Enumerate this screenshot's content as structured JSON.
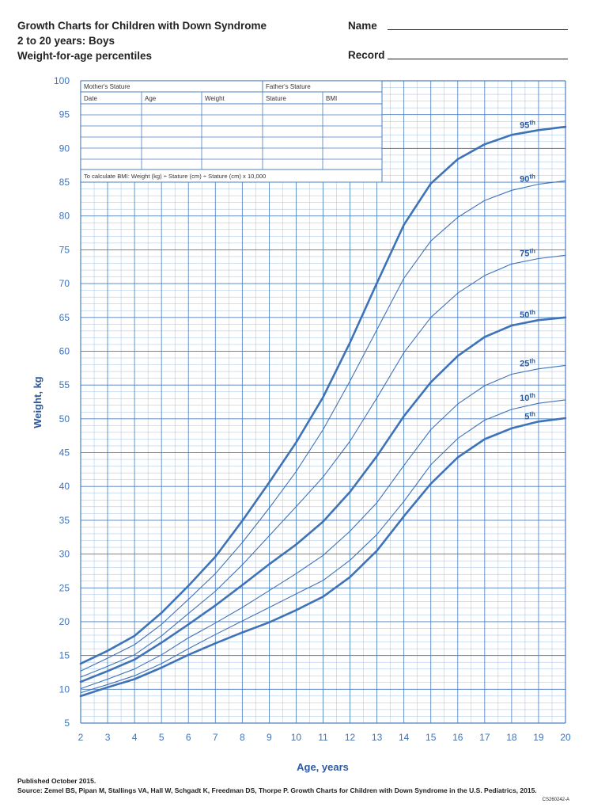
{
  "header": {
    "title_lines": [
      "Growth Charts for Children with Down Syndrome",
      "2 to 20 years: Boys",
      "Weight-for-age percentiles"
    ],
    "name_label": "Name",
    "record_label": "Record"
  },
  "table": {
    "mother_label": "Mother's Stature",
    "father_label": "Father's Stature",
    "columns": [
      "Date",
      "Age",
      "Weight",
      "Stature",
      "BMI"
    ],
    "note": "To calculate BMI: Weight (kg) ÷ Stature (cm) ÷ Stature (cm) x 10,000"
  },
  "chart_data": {
    "type": "line",
    "xlabel": "Age, years",
    "ylabel": "Weight, kg",
    "xlim": [
      2,
      20
    ],
    "ylim": [
      5,
      100
    ],
    "x_ticks": [
      2,
      3,
      4,
      5,
      6,
      7,
      8,
      9,
      10,
      11,
      12,
      13,
      14,
      15,
      16,
      17,
      18,
      19,
      20
    ],
    "y_ticks": [
      5,
      10,
      15,
      20,
      25,
      30,
      35,
      40,
      45,
      50,
      55,
      60,
      65,
      70,
      75,
      80,
      85,
      90,
      95,
      100
    ],
    "grid": true,
    "x": [
      2,
      3,
      4,
      5,
      6,
      7,
      8,
      9,
      10,
      11,
      12,
      13,
      14,
      15,
      16,
      17,
      18,
      19,
      20
    ],
    "series": [
      {
        "name": "95th",
        "values": [
          13.8,
          15.7,
          17.9,
          21.3,
          25.3,
          29.6,
          34.9,
          40.6,
          46.5,
          53.2,
          61.3,
          70.1,
          78.7,
          84.8,
          88.4,
          90.6,
          92.0,
          92.7,
          93.2
        ]
      },
      {
        "name": "90th",
        "values": [
          12.7,
          14.6,
          16.6,
          19.6,
          23.3,
          27.1,
          31.7,
          36.8,
          42.2,
          48.4,
          55.6,
          63.2,
          70.8,
          76.3,
          79.8,
          82.3,
          83.8,
          84.7,
          85.2
        ]
      },
      {
        "name": "75th",
        "values": [
          11.8,
          13.4,
          15.1,
          17.9,
          21.2,
          24.5,
          28.4,
          32.7,
          37.0,
          41.4,
          46.7,
          53.1,
          59.8,
          65.0,
          68.6,
          71.2,
          72.9,
          73.7,
          74.2
        ]
      },
      {
        "name": "50th",
        "values": [
          11.1,
          12.7,
          14.4,
          16.9,
          19.6,
          22.4,
          25.4,
          28.5,
          31.4,
          34.8,
          39.2,
          44.5,
          50.4,
          55.4,
          59.3,
          62.1,
          63.8,
          64.6,
          65.0
        ]
      },
      {
        "name": "25th",
        "values": [
          10.1,
          11.5,
          13.0,
          15.1,
          17.6,
          19.8,
          22.1,
          24.6,
          27.1,
          29.8,
          33.4,
          37.6,
          43.1,
          48.4,
          52.2,
          54.9,
          56.6,
          57.4,
          57.9
        ]
      },
      {
        "name": "10th",
        "values": [
          9.5,
          10.7,
          12.0,
          13.8,
          16.0,
          18.1,
          20.1,
          22.1,
          24.1,
          26.1,
          29.1,
          32.9,
          37.8,
          43.2,
          47.1,
          49.8,
          51.4,
          52.3,
          52.8
        ]
      },
      {
        "name": "5th",
        "values": [
          9.0,
          10.3,
          11.5,
          13.2,
          15.1,
          16.8,
          18.4,
          19.9,
          21.7,
          23.7,
          26.6,
          30.5,
          35.6,
          40.4,
          44.3,
          47.0,
          48.6,
          49.6,
          50.1
        ]
      }
    ]
  },
  "footer": {
    "published": "Published October 2015.",
    "source": "Source: Zemel BS, Pipan M, Stallings VA, Hall W, Schgadt K, Freedman DS, Thorpe P. Growth Charts for Children with Down Syndrome in the U.S. Pediatrics, 2015.",
    "code": "CS260242-A"
  }
}
